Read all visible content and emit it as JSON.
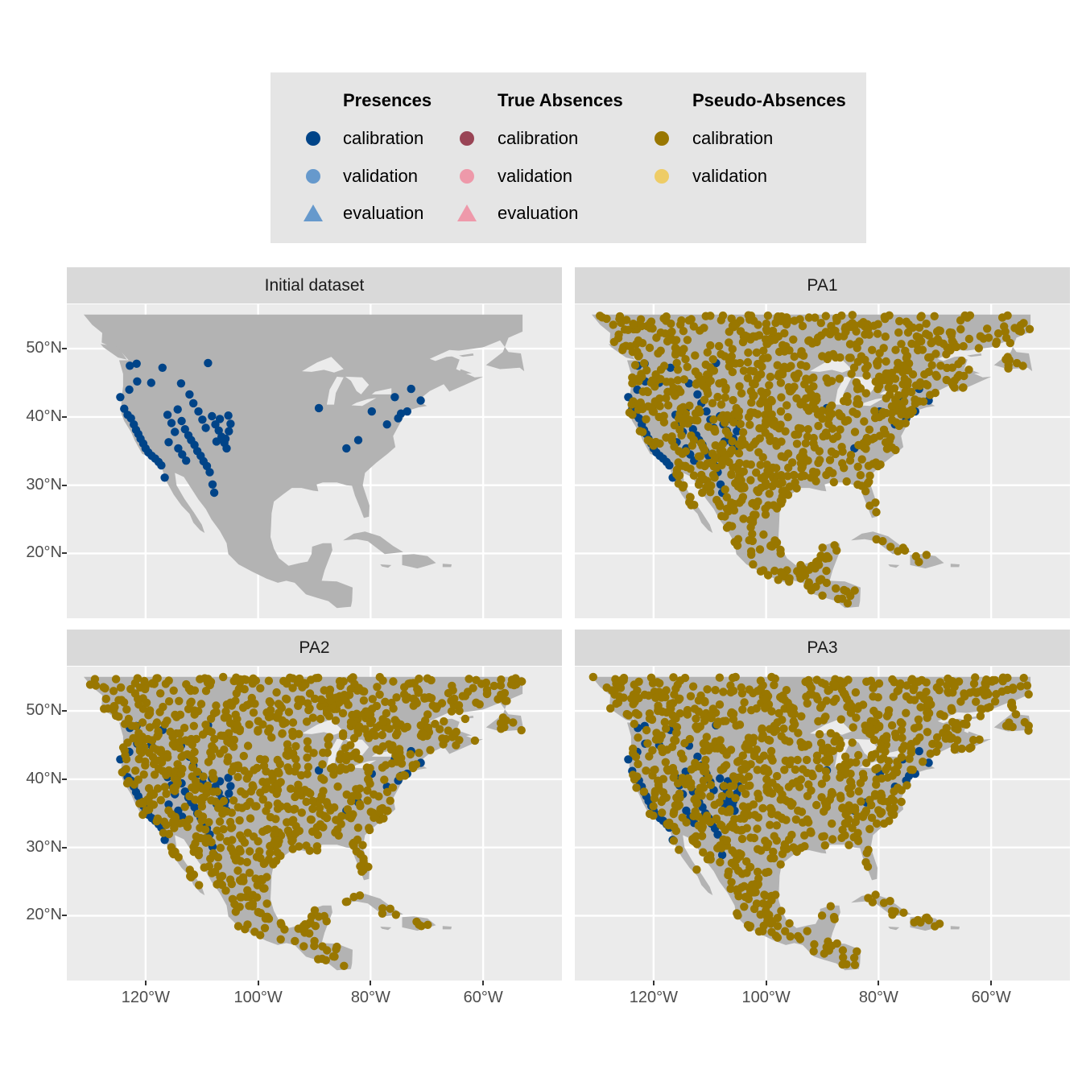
{
  "legend": {
    "groups": [
      {
        "title": "Presences",
        "items": [
          {
            "label": "calibration",
            "shape": "circle",
            "color": "#004488"
          },
          {
            "label": "validation",
            "shape": "circle",
            "color": "#6699cc"
          },
          {
            "label": "evaluation",
            "shape": "triangle",
            "color": "#6699cc"
          }
        ]
      },
      {
        "title": "True Absences",
        "items": [
          {
            "label": "calibration",
            "shape": "circle",
            "color": "#994455"
          },
          {
            "label": "validation",
            "shape": "circle",
            "color": "#ee99aa"
          },
          {
            "label": "evaluation",
            "shape": "triangle",
            "color": "#ee99aa"
          }
        ]
      },
      {
        "title": "Pseudo-Absences",
        "items": [
          {
            "label": "calibration",
            "shape": "circle",
            "color": "#997700"
          },
          {
            "label": "validation",
            "shape": "circle",
            "color": "#eecc66"
          }
        ]
      }
    ]
  },
  "colors": {
    "land": "#b3b3b3",
    "panel_bg": "#ebebeb",
    "gridline": "#ffffff",
    "strip_bg": "#d9d9d9",
    "presence": "#004488",
    "pseudo_absence": "#997700"
  },
  "axes": {
    "y_ticks": [
      "50°N",
      "40°N",
      "30°N",
      "20°N"
    ],
    "y_tick_values": [
      50,
      40,
      30,
      20
    ],
    "x_ticks": [
      "120°W",
      "100°W",
      "80°W",
      "60°W"
    ],
    "x_tick_values": [
      -120,
      -100,
      -80,
      -60
    ],
    "lon_range": [
      -134,
      -46
    ],
    "lat_range": [
      10.5,
      56.5
    ]
  },
  "panels": [
    {
      "title": "Initial dataset",
      "pseudo_absence_points": 0
    },
    {
      "title": "PA1",
      "pseudo_absence_points": 1000
    },
    {
      "title": "PA2",
      "pseudo_absence_points": 1000
    },
    {
      "title": "PA3",
      "pseudo_absence_points": 1000
    }
  ],
  "chart_data": {
    "type": "scatter",
    "facets": [
      "Initial dataset",
      "PA1",
      "PA2",
      "PA3"
    ],
    "series": [
      {
        "name": "Presences calibration",
        "color": "#004488",
        "points_lonlat": [
          [
            -124.5,
            42.9
          ],
          [
            -123.8,
            41.2
          ],
          [
            -123.2,
            40.3
          ],
          [
            -122.6,
            39.8
          ],
          [
            -122.1,
            38.9
          ],
          [
            -121.7,
            38.1
          ],
          [
            -121.3,
            37.5
          ],
          [
            -120.9,
            36.8
          ],
          [
            -120.4,
            36.1
          ],
          [
            -120.0,
            35.4
          ],
          [
            -119.5,
            34.8
          ],
          [
            -118.9,
            34.3
          ],
          [
            -118.3,
            33.9
          ],
          [
            -117.7,
            33.4
          ],
          [
            -117.2,
            32.9
          ],
          [
            -116.6,
            31.1
          ],
          [
            -122.9,
            44.0
          ],
          [
            -121.5,
            45.2
          ],
          [
            -119.0,
            45.0
          ],
          [
            -117.0,
            47.2
          ],
          [
            -114.3,
            41.1
          ],
          [
            -113.6,
            39.4
          ],
          [
            -113.0,
            38.2
          ],
          [
            -112.4,
            37.3
          ],
          [
            -111.9,
            36.6
          ],
          [
            -111.3,
            35.9
          ],
          [
            -110.8,
            35.0
          ],
          [
            -110.2,
            34.3
          ],
          [
            -109.7,
            33.5
          ],
          [
            -109.1,
            32.8
          ],
          [
            -108.6,
            31.9
          ],
          [
            -108.1,
            30.1
          ],
          [
            -107.8,
            28.9
          ],
          [
            -112.2,
            43.3
          ],
          [
            -111.5,
            42.0
          ],
          [
            -110.6,
            40.8
          ],
          [
            -109.9,
            39.6
          ],
          [
            -109.3,
            38.4
          ],
          [
            -108.2,
            40.1
          ],
          [
            -107.6,
            38.9
          ],
          [
            -107.0,
            38.0
          ],
          [
            -106.5,
            37.1
          ],
          [
            -106.0,
            36.2
          ],
          [
            -105.6,
            35.4
          ],
          [
            -105.2,
            37.9
          ],
          [
            -104.9,
            39.0
          ],
          [
            -105.3,
            40.2
          ],
          [
            -105.8,
            36.8
          ],
          [
            -106.8,
            39.7
          ],
          [
            -107.4,
            36.4
          ],
          [
            -116.1,
            40.3
          ],
          [
            -115.4,
            39.1
          ],
          [
            -114.8,
            37.8
          ],
          [
            -115.9,
            36.3
          ],
          [
            -114.2,
            35.4
          ],
          [
            -113.5,
            34.5
          ],
          [
            -112.8,
            33.6
          ],
          [
            -121.6,
            47.8
          ],
          [
            -108.9,
            47.9
          ],
          [
            -122.8,
            47.5
          ],
          [
            -113.7,
            44.9
          ],
          [
            -89.2,
            41.3
          ],
          [
            -84.3,
            35.4
          ],
          [
            -82.2,
            36.6
          ],
          [
            -79.8,
            40.8
          ],
          [
            -77.1,
            38.9
          ],
          [
            -75.1,
            39.8
          ],
          [
            -74.6,
            40.5
          ],
          [
            -73.5,
            40.8
          ],
          [
            -75.7,
            42.9
          ],
          [
            -72.8,
            44.1
          ],
          [
            -71.1,
            42.4
          ]
        ]
      },
      {
        "name": "Pseudo-Absences calibration",
        "color": "#997700",
        "count_per_panel": 1000
      }
    ]
  }
}
